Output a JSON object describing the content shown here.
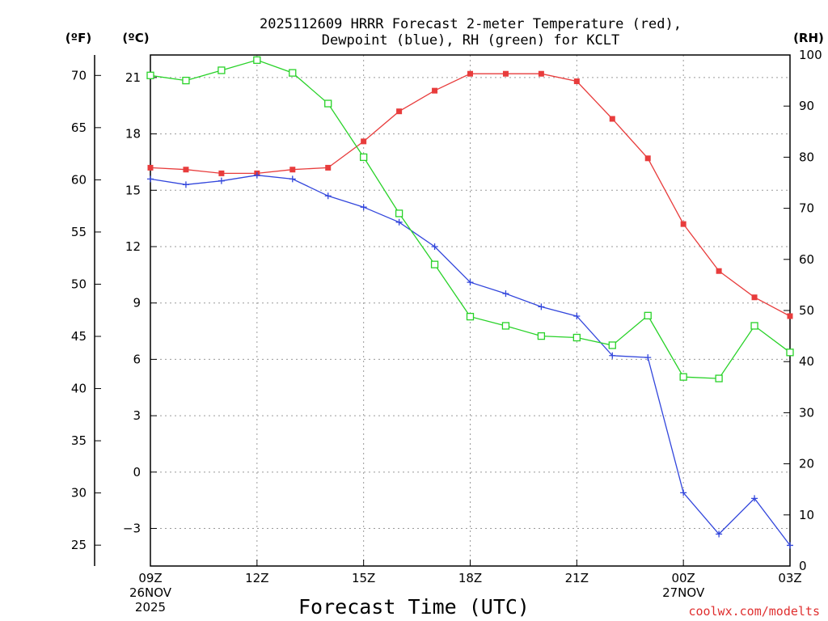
{
  "chart_data": {
    "type": "line",
    "title_line1": "2025112609 HRRR Forecast 2-meter Temperature (red),",
    "title_line2": "Dewpoint (blue), RH (green) for KCLT",
    "xlabel": "Forecast Time (UTC)",
    "credit": "coolwx.com/modelts",
    "units": {
      "fahrenheit": "(ºF)",
      "celsius": "(ºC)",
      "rh": "(RH)"
    },
    "x": [
      0,
      1,
      2,
      3,
      4,
      5,
      6,
      7,
      8,
      9,
      10,
      11,
      12,
      13,
      14,
      15,
      16,
      17,
      18
    ],
    "xlim": [
      0,
      18
    ],
    "x_ticks": [
      {
        "x": 0,
        "line1": "09Z",
        "line2": "26NOV",
        "line3": "2025"
      },
      {
        "x": 3,
        "line1": "12Z"
      },
      {
        "x": 6,
        "line1": "15Z"
      },
      {
        "x": 9,
        "line1": "18Z"
      },
      {
        "x": 12,
        "line1": "21Z"
      },
      {
        "x": 15,
        "line1": "00Z",
        "line2": "27NOV"
      },
      {
        "x": 18,
        "line1": "03Z"
      }
    ],
    "ylim_c": [
      -5,
      22.2
    ],
    "celsius_ticks": [
      21,
      18,
      15,
      12,
      9,
      6,
      3,
      0,
      -3
    ],
    "fahrenheit_ticks": [
      70,
      65,
      60,
      55,
      50,
      45,
      40,
      35,
      30,
      25
    ],
    "ylim_rh": [
      0,
      100
    ],
    "rh_ticks": [
      100,
      90,
      80,
      70,
      60,
      50,
      40,
      30,
      20,
      10,
      0
    ],
    "series": [
      {
        "name": "2-meter Temperature",
        "axis": "celsius",
        "color": "#e83c3c",
        "marker": "filled-square",
        "values": [
          16.2,
          16.1,
          15.9,
          15.9,
          16.1,
          16.2,
          17.6,
          19.2,
          20.3,
          21.2,
          21.2,
          21.2,
          20.8,
          18.8,
          16.7,
          13.2,
          10.7,
          9.3,
          8.3
        ]
      },
      {
        "name": "Dewpoint",
        "axis": "celsius",
        "color": "#3246dc",
        "marker": "plus",
        "values": [
          15.6,
          15.3,
          15.5,
          15.8,
          15.6,
          14.7,
          14.1,
          13.3,
          12.0,
          10.1,
          9.5,
          8.8,
          8.3,
          6.2,
          6.1,
          -1.1,
          -3.3,
          -1.4,
          -3.9
        ]
      },
      {
        "name": "RH",
        "axis": "rh",
        "color": "#28d228",
        "marker": "open-square",
        "values": [
          96,
          95,
          97,
          99,
          96.5,
          90.5,
          80,
          69,
          59,
          48.8,
          47,
          45,
          44.7,
          43.2,
          49,
          37,
          36.7,
          47,
          41.8
        ]
      }
    ]
  }
}
